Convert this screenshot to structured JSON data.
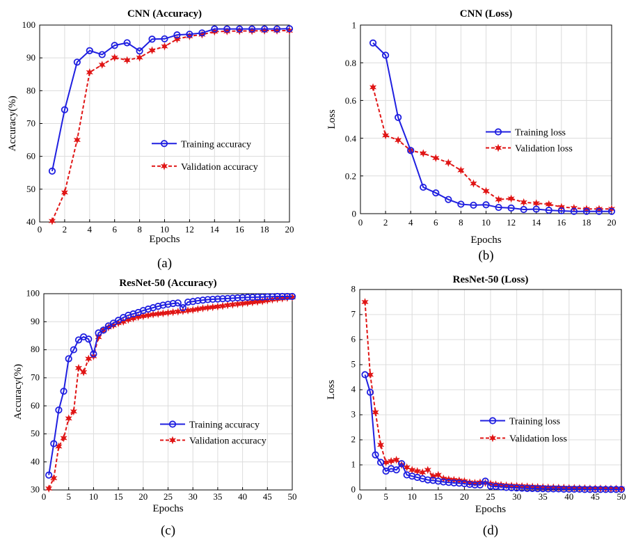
{
  "chart_data": [
    {
      "type": "line",
      "title": "CNN (Accuracy)",
      "xlabel": "Epochs",
      "ylabel": "Accuracy(%)",
      "panel_label": "(a)",
      "xlim": [
        0,
        20
      ],
      "ylim": [
        40,
        100
      ],
      "xticks": [
        0,
        2,
        4,
        6,
        8,
        10,
        12,
        14,
        16,
        18,
        20
      ],
      "yticks": [
        40,
        50,
        60,
        70,
        80,
        90,
        100
      ],
      "grid": true,
      "legend_position": "center-right",
      "series": [
        {
          "name": "Training accuracy",
          "color": "#1f1fe0",
          "marker": "circle",
          "dash": false,
          "x": [
            1,
            2,
            3,
            4,
            5,
            6,
            7,
            8,
            9,
            10,
            11,
            12,
            13,
            14,
            15,
            16,
            17,
            18,
            19,
            20
          ],
          "values": [
            55.5,
            74.2,
            88.7,
            92.2,
            91.0,
            93.8,
            94.6,
            92.1,
            95.7,
            95.8,
            97.0,
            97.2,
            97.6,
            98.8,
            98.8,
            98.8,
            98.8,
            98.8,
            98.8,
            98.9
          ]
        },
        {
          "name": "Validation accuracy",
          "color": "#e01515",
          "marker": "star",
          "dash": true,
          "x": [
            1,
            2,
            3,
            4,
            5,
            6,
            7,
            8,
            9,
            10,
            11,
            12,
            13,
            14,
            15,
            16,
            17,
            18,
            19,
            20
          ],
          "values": [
            40.3,
            49.0,
            65.0,
            85.6,
            87.9,
            90.1,
            89.3,
            90.1,
            92.3,
            93.5,
            95.7,
            96.6,
            97.1,
            98.0,
            98.1,
            98.2,
            98.2,
            98.3,
            98.3,
            98.3
          ]
        }
      ]
    },
    {
      "type": "line",
      "title": "CNN (Loss)",
      "xlabel": "Epochs",
      "ylabel": "Loss",
      "panel_label": "(b)",
      "xlim": [
        0,
        20
      ],
      "ylim": [
        0,
        1
      ],
      "xticks": [
        0,
        2,
        4,
        6,
        8,
        10,
        12,
        14,
        16,
        18,
        20
      ],
      "yticks": [
        0,
        0.2,
        0.4,
        0.6,
        0.8,
        1
      ],
      "grid": true,
      "legend_position": "center-right",
      "series": [
        {
          "name": "Training loss",
          "color": "#1f1fe0",
          "marker": "circle",
          "dash": false,
          "x": [
            1,
            2,
            3,
            4,
            5,
            6,
            7,
            8,
            9,
            10,
            11,
            12,
            13,
            14,
            15,
            16,
            17,
            18,
            19,
            20
          ],
          "values": [
            0.905,
            0.84,
            0.51,
            0.335,
            0.14,
            0.11,
            0.075,
            0.05,
            0.045,
            0.047,
            0.033,
            0.03,
            0.022,
            0.024,
            0.018,
            0.015,
            0.012,
            0.012,
            0.012,
            0.012
          ]
        },
        {
          "name": "Validation loss",
          "color": "#e01515",
          "marker": "star",
          "dash": true,
          "x": [
            1,
            2,
            3,
            4,
            5,
            6,
            7,
            8,
            9,
            10,
            11,
            12,
            13,
            14,
            15,
            16,
            17,
            18,
            19,
            20
          ],
          "values": [
            0.67,
            0.415,
            0.39,
            0.335,
            0.32,
            0.295,
            0.27,
            0.23,
            0.16,
            0.12,
            0.075,
            0.08,
            0.06,
            0.055,
            0.05,
            0.035,
            0.03,
            0.025,
            0.025,
            0.025
          ]
        }
      ]
    },
    {
      "type": "line",
      "title": "ResNet-50 (Accuracy)",
      "xlabel": "Epochs",
      "ylabel": "Accuracy(%)",
      "panel_label": "(c)",
      "xlim": [
        0,
        50
      ],
      "ylim": [
        30,
        100
      ],
      "xticks": [
        0,
        5,
        10,
        15,
        20,
        25,
        30,
        35,
        40,
        45,
        50
      ],
      "yticks": [
        30,
        40,
        50,
        60,
        70,
        80,
        90,
        100
      ],
      "grid": true,
      "legend_position": "bottom-right",
      "series": [
        {
          "name": "Training accuracy",
          "color": "#1f1fe0",
          "marker": "circle",
          "dash": false,
          "x": [
            1,
            2,
            3,
            4,
            5,
            6,
            7,
            8,
            9,
            10,
            11,
            12,
            13,
            14,
            15,
            16,
            17,
            18,
            19,
            20,
            21,
            22,
            23,
            24,
            25,
            26,
            27,
            28,
            29,
            30,
            31,
            32,
            33,
            34,
            35,
            36,
            37,
            38,
            39,
            40,
            41,
            42,
            43,
            44,
            45,
            46,
            47,
            48,
            49,
            50
          ],
          "values": [
            35.3,
            46.5,
            58.5,
            65.2,
            76.8,
            80.0,
            83.5,
            84.6,
            83.8,
            78.5,
            86.0,
            87.0,
            88.5,
            89.5,
            90.5,
            91.5,
            92.3,
            92.8,
            93.3,
            94.0,
            94.5,
            95.0,
            95.5,
            95.9,
            96.2,
            96.5,
            96.7,
            95.0,
            97.0,
            97.2,
            97.5,
            97.7,
            97.9,
            98.0,
            98.1,
            98.2,
            98.3,
            98.4,
            98.5,
            98.6,
            98.7,
            98.7,
            98.8,
            98.8,
            98.9,
            98.9,
            99.0,
            99.0,
            99.0,
            99.0
          ]
        },
        {
          "name": "Validation accuracy",
          "color": "#e01515",
          "marker": "star",
          "dash": true,
          "x": [
            1,
            2,
            3,
            4,
            5,
            6,
            7,
            8,
            9,
            10,
            11,
            12,
            13,
            14,
            15,
            16,
            17,
            18,
            19,
            20,
            21,
            22,
            23,
            24,
            25,
            26,
            27,
            28,
            29,
            30,
            31,
            32,
            33,
            34,
            35,
            36,
            37,
            38,
            39,
            40,
            41,
            42,
            43,
            44,
            45,
            46,
            47,
            48,
            49,
            50
          ],
          "values": [
            30.5,
            34.2,
            45.5,
            48.5,
            55.5,
            58.0,
            73.5,
            72.0,
            76.8,
            77.7,
            84.5,
            87.0,
            88.0,
            88.7,
            89.5,
            90.0,
            90.7,
            91.2,
            91.7,
            92.0,
            92.3,
            92.6,
            92.8,
            93.0,
            93.2,
            93.4,
            93.6,
            93.8,
            94.0,
            94.2,
            94.5,
            94.8,
            95.0,
            95.2,
            95.4,
            95.6,
            95.9,
            96.1,
            96.3,
            96.5,
            96.7,
            96.9,
            97.1,
            97.3,
            97.6,
            97.9,
            98.1,
            98.3,
            98.5,
            98.7
          ]
        }
      ]
    },
    {
      "type": "line",
      "title": "ResNet-50 (Loss)",
      "xlabel": "Epochs",
      "ylabel": "Loss",
      "panel_label": "(d)",
      "xlim": [
        0,
        50
      ],
      "ylim": [
        0,
        8
      ],
      "xticks": [
        0,
        5,
        10,
        15,
        20,
        25,
        30,
        35,
        40,
        45,
        50
      ],
      "yticks": [
        0,
        1,
        2,
        3,
        4,
        5,
        6,
        7,
        8
      ],
      "grid": true,
      "legend_position": "center-right",
      "series": [
        {
          "name": "Training loss",
          "color": "#1f1fe0",
          "marker": "circle",
          "dash": false,
          "x": [
            1,
            2,
            3,
            4,
            5,
            6,
            7,
            8,
            9,
            10,
            11,
            12,
            13,
            14,
            15,
            16,
            17,
            18,
            19,
            20,
            21,
            22,
            23,
            24,
            25,
            26,
            27,
            28,
            29,
            30,
            31,
            32,
            33,
            34,
            35,
            36,
            37,
            38,
            39,
            40,
            41,
            42,
            43,
            44,
            45,
            46,
            47,
            48,
            49,
            50
          ],
          "values": [
            4.6,
            3.9,
            1.4,
            1.1,
            0.75,
            0.85,
            0.8,
            1.05,
            0.6,
            0.55,
            0.5,
            0.45,
            0.4,
            0.38,
            0.35,
            0.32,
            0.3,
            0.28,
            0.27,
            0.25,
            0.22,
            0.2,
            0.2,
            0.35,
            0.15,
            0.14,
            0.12,
            0.1,
            0.09,
            0.08,
            0.07,
            0.06,
            0.06,
            0.05,
            0.05,
            0.04,
            0.04,
            0.04,
            0.03,
            0.03,
            0.03,
            0.03,
            0.02,
            0.02,
            0.02,
            0.02,
            0.02,
            0.02,
            0.02,
            0.02
          ]
        },
        {
          "name": "Validation loss",
          "color": "#e01515",
          "marker": "star",
          "dash": true,
          "x": [
            1,
            2,
            3,
            4,
            5,
            6,
            7,
            8,
            9,
            10,
            11,
            12,
            13,
            14,
            15,
            16,
            17,
            18,
            19,
            20,
            21,
            22,
            23,
            24,
            25,
            26,
            27,
            28,
            29,
            30,
            31,
            32,
            33,
            34,
            35,
            36,
            37,
            38,
            39,
            40,
            41,
            42,
            43,
            44,
            45,
            46,
            47,
            48,
            49,
            50
          ],
          "values": [
            7.5,
            4.6,
            3.1,
            1.8,
            1.1,
            1.15,
            1.2,
            1.0,
            0.9,
            0.8,
            0.75,
            0.7,
            0.8,
            0.55,
            0.6,
            0.45,
            0.42,
            0.4,
            0.38,
            0.35,
            0.3,
            0.28,
            0.3,
            0.28,
            0.25,
            0.22,
            0.2,
            0.18,
            0.17,
            0.16,
            0.15,
            0.14,
            0.13,
            0.12,
            0.11,
            0.1,
            0.1,
            0.09,
            0.09,
            0.08,
            0.08,
            0.07,
            0.07,
            0.06,
            0.06,
            0.06,
            0.05,
            0.05,
            0.05,
            0.05
          ]
        }
      ]
    }
  ]
}
